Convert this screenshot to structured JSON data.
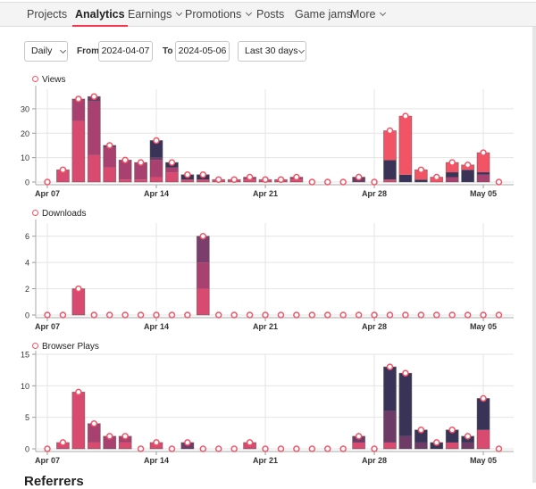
{
  "nav": {
    "items": [
      {
        "label": "Projects",
        "dropdown": false
      },
      {
        "label": "Analytics",
        "dropdown": false,
        "active": true
      },
      {
        "label": "Earnings",
        "dropdown": true
      },
      {
        "label": "Promotions",
        "dropdown": true
      },
      {
        "label": "Posts",
        "dropdown": false
      },
      {
        "label": "Game jams",
        "dropdown": false
      },
      {
        "label": "More",
        "dropdown": true
      }
    ]
  },
  "filters": {
    "interval": "Daily",
    "from_label": "From",
    "from_value": "2024-04-07",
    "to_label": "To",
    "to_value": "2024-05-06",
    "range": "Last 30 days"
  },
  "colors": {
    "accent": "#fa3552",
    "pink": "#d94a70",
    "mauve": "#a8416f",
    "plum": "#6e3a66",
    "navy": "#3a3358",
    "coral": "#f25466"
  },
  "chart_data": [
    {
      "type": "bar",
      "stacked": true,
      "title": "Views",
      "x_start": "2024-04-07",
      "days": 30,
      "xticks": [
        {
          "index": 0,
          "label": "Apr 07"
        },
        {
          "index": 7,
          "label": "Apr 14"
        },
        {
          "index": 14,
          "label": "Apr 21"
        },
        {
          "index": 21,
          "label": "Apr 28"
        },
        {
          "index": 28,
          "label": "May 05"
        }
      ],
      "yticks": [
        0,
        10,
        20,
        30
      ],
      "ylim": [
        0,
        38
      ],
      "series": [
        {
          "color": "#d94a70",
          "values": [
            0,
            5,
            25,
            11,
            6,
            1,
            1,
            2,
            4,
            1,
            1,
            1,
            1,
            1,
            1,
            1,
            1,
            0,
            0,
            0,
            0,
            0,
            1,
            0,
            0,
            0,
            0,
            0,
            0,
            0
          ]
        },
        {
          "color": "#a8416f",
          "values": [
            0,
            0,
            9,
            22,
            8,
            8,
            7,
            7,
            2,
            0,
            0,
            0,
            0,
            1,
            0,
            0,
            1,
            0,
            0,
            0,
            0,
            0,
            0,
            0,
            0,
            0,
            2,
            0,
            3,
            0
          ]
        },
        {
          "color": "#6e3a66",
          "values": [
            0,
            0,
            0,
            2,
            1,
            0,
            0,
            1,
            0,
            0,
            0,
            0,
            0,
            0,
            0,
            0,
            0,
            0,
            0,
            0,
            2,
            0,
            0,
            0,
            0,
            0,
            0,
            0,
            0,
            0
          ]
        },
        {
          "color": "#3a3358",
          "values": [
            0,
            0,
            0,
            0,
            0,
            0,
            0,
            7,
            2,
            2,
            2,
            0,
            0,
            0,
            0,
            0,
            0,
            0,
            0,
            0,
            0,
            0,
            8,
            3,
            1,
            0,
            2,
            5,
            1,
            0
          ]
        },
        {
          "color": "#f25466",
          "values": [
            0,
            0,
            0,
            0,
            0,
            0,
            0,
            0,
            0,
            0,
            0,
            0,
            0,
            0,
            0,
            0,
            0,
            0,
            0,
            0,
            0,
            0,
            12,
            24,
            4,
            2,
            4,
            2,
            8,
            0
          ]
        }
      ]
    },
    {
      "type": "bar",
      "stacked": true,
      "title": "Downloads",
      "x_start": "2024-04-07",
      "days": 30,
      "xticks": [
        {
          "index": 0,
          "label": "Apr 07"
        },
        {
          "index": 7,
          "label": "Apr 14"
        },
        {
          "index": 14,
          "label": "Apr 21"
        },
        {
          "index": 21,
          "label": "Apr 28"
        },
        {
          "index": 28,
          "label": "May 05"
        }
      ],
      "yticks": [
        0,
        2,
        4,
        6
      ],
      "ylim": [
        0,
        7
      ],
      "series": [
        {
          "color": "#d94a70",
          "values": [
            0,
            0,
            2,
            0,
            0,
            0,
            0,
            0,
            0,
            0,
            2,
            0,
            0,
            0,
            0,
            0,
            0,
            0,
            0,
            0,
            0,
            0,
            0,
            0,
            0,
            0,
            0,
            0,
            0,
            0
          ]
        },
        {
          "color": "#a8416f",
          "values": [
            0,
            0,
            0,
            0,
            0,
            0,
            0,
            0,
            0,
            0,
            2,
            0,
            0,
            0,
            0,
            0,
            0,
            0,
            0,
            0,
            0,
            0,
            0,
            0,
            0,
            0,
            0,
            0,
            0,
            0
          ]
        },
        {
          "color": "#7a3d6c",
          "values": [
            0,
            0,
            0,
            0,
            0,
            0,
            0,
            0,
            0,
            0,
            2,
            0,
            0,
            0,
            0,
            0,
            0,
            0,
            0,
            0,
            0,
            0,
            0,
            0,
            0,
            0,
            0,
            0,
            0,
            0
          ]
        }
      ]
    },
    {
      "type": "bar",
      "stacked": true,
      "title": "Browser Plays",
      "x_start": "2024-04-07",
      "days": 30,
      "xticks": [
        {
          "index": 0,
          "label": "Apr 07"
        },
        {
          "index": 7,
          "label": "Apr 14"
        },
        {
          "index": 14,
          "label": "Apr 21"
        },
        {
          "index": 21,
          "label": "Apr 28"
        },
        {
          "index": 28,
          "label": "May 05"
        }
      ],
      "yticks": [
        0,
        5,
        10,
        15
      ],
      "ylim": [
        0,
        15
      ],
      "series": [
        {
          "color": "#d94a70",
          "values": [
            0,
            1,
            9,
            1,
            0,
            1,
            0,
            1,
            0,
            0,
            0,
            0,
            0,
            1,
            0,
            0,
            0,
            0,
            0,
            0,
            1,
            0,
            1,
            0,
            0,
            0,
            1,
            0,
            3,
            0
          ]
        },
        {
          "color": "#a8416f",
          "values": [
            0,
            0,
            0,
            3,
            2,
            1,
            0,
            0,
            0,
            0,
            0,
            0,
            0,
            0,
            0,
            0,
            0,
            0,
            0,
            0,
            0,
            0,
            0,
            0,
            0,
            0,
            0,
            0,
            0,
            0
          ]
        },
        {
          "color": "#6e3a66",
          "values": [
            0,
            0,
            0,
            0,
            0,
            0,
            0,
            0,
            0,
            1,
            0,
            0,
            0,
            0,
            0,
            0,
            0,
            0,
            0,
            0,
            1,
            0,
            5,
            2,
            1,
            0,
            0,
            1,
            0,
            0
          ]
        },
        {
          "color": "#3a3358",
          "values": [
            0,
            0,
            0,
            0,
            0,
            0,
            0,
            0,
            0,
            0,
            0,
            0,
            0,
            0,
            0,
            0,
            0,
            0,
            0,
            0,
            0,
            0,
            7,
            10,
            2,
            1,
            2,
            1,
            5,
            0
          ]
        }
      ]
    }
  ],
  "referrers_heading": "Referrers"
}
